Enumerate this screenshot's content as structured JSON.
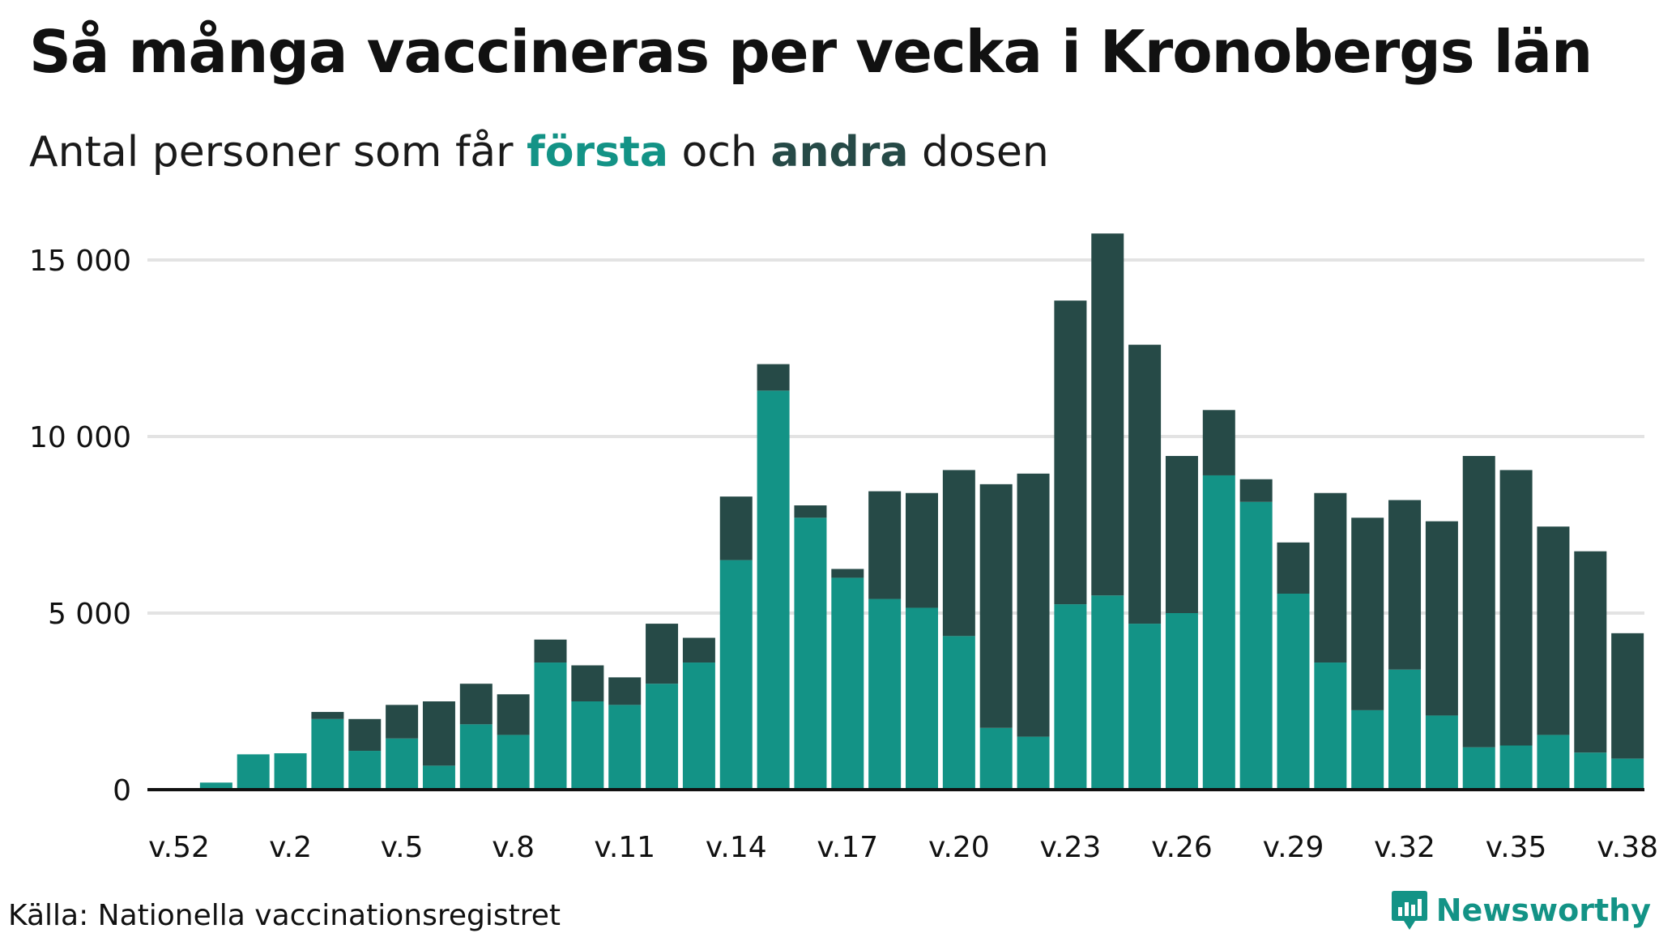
{
  "title": "Så många vaccineras per vecka i Kronobergs län",
  "subtitle": {
    "pre": "Antal personer som får ",
    "first": "första",
    "mid": " och ",
    "second": "andra",
    "post": " dosen"
  },
  "source": "Källa: Nationella vaccinationsregistret",
  "brand": "Newsworthy",
  "colors": {
    "first_dose": "#139386",
    "second_dose": "#264a47",
    "grid": "#e3e3e3",
    "axis": "#111111",
    "brand": "#139386"
  },
  "chart_data": {
    "type": "bar",
    "stacked": true,
    "title": "Så många vaccineras per vecka i Kronobergs län",
    "subtitle": "Antal personer som får första och andra dosen",
    "categories": [
      "v.52",
      "v.53",
      "v.1",
      "v.2",
      "v.3",
      "v.4",
      "v.5",
      "v.6",
      "v.7",
      "v.8",
      "v.9",
      "v.10",
      "v.11",
      "v.12",
      "v.13",
      "v.14",
      "v.15",
      "v.16",
      "v.17",
      "v.18",
      "v.19",
      "v.20",
      "v.21",
      "v.22",
      "v.23",
      "v.24",
      "v.25",
      "v.26",
      "v.27",
      "v.28",
      "v.29",
      "v.30",
      "v.31",
      "v.32",
      "v.33",
      "v.34",
      "v.35",
      "v.36",
      "v.37",
      "v.38"
    ],
    "tick_labels": [
      "v.52",
      "v.2",
      "v.5",
      "v.8",
      "v.11",
      "v.14",
      "v.17",
      "v.20",
      "v.23",
      "v.26",
      "v.29",
      "v.32",
      "v.35",
      "v.38"
    ],
    "series": [
      {
        "name": "första",
        "color": "#139386",
        "values": [
          0,
          200,
          1000,
          1030,
          2000,
          1100,
          1450,
          680,
          1850,
          1550,
          3600,
          2500,
          2400,
          3000,
          3600,
          6500,
          11300,
          7700,
          6000,
          5400,
          5150,
          4350,
          1750,
          1500,
          5250,
          5500,
          4700,
          5000,
          8900,
          8150,
          5550,
          3600,
          2250,
          3400,
          2100,
          1200,
          1250,
          1550,
          1050,
          880
        ]
      },
      {
        "name": "andra",
        "color": "#264a47",
        "values": [
          0,
          0,
          0,
          0,
          200,
          900,
          950,
          1820,
          1150,
          1150,
          650,
          1020,
          780,
          1700,
          700,
          1800,
          750,
          350,
          250,
          3050,
          3250,
          4700,
          6900,
          7450,
          8600,
          10250,
          7900,
          4450,
          1850,
          640,
          1450,
          4800,
          5450,
          4800,
          5500,
          8250,
          7800,
          5900,
          5700,
          3550
        ]
      }
    ],
    "ylim": [
      0,
      16000
    ],
    "yticks": [
      0,
      5000,
      10000,
      15000
    ],
    "ytick_labels": [
      "0",
      "5 000",
      "10 000",
      "15 000"
    ],
    "grid": true,
    "legend": "in subtitle"
  }
}
